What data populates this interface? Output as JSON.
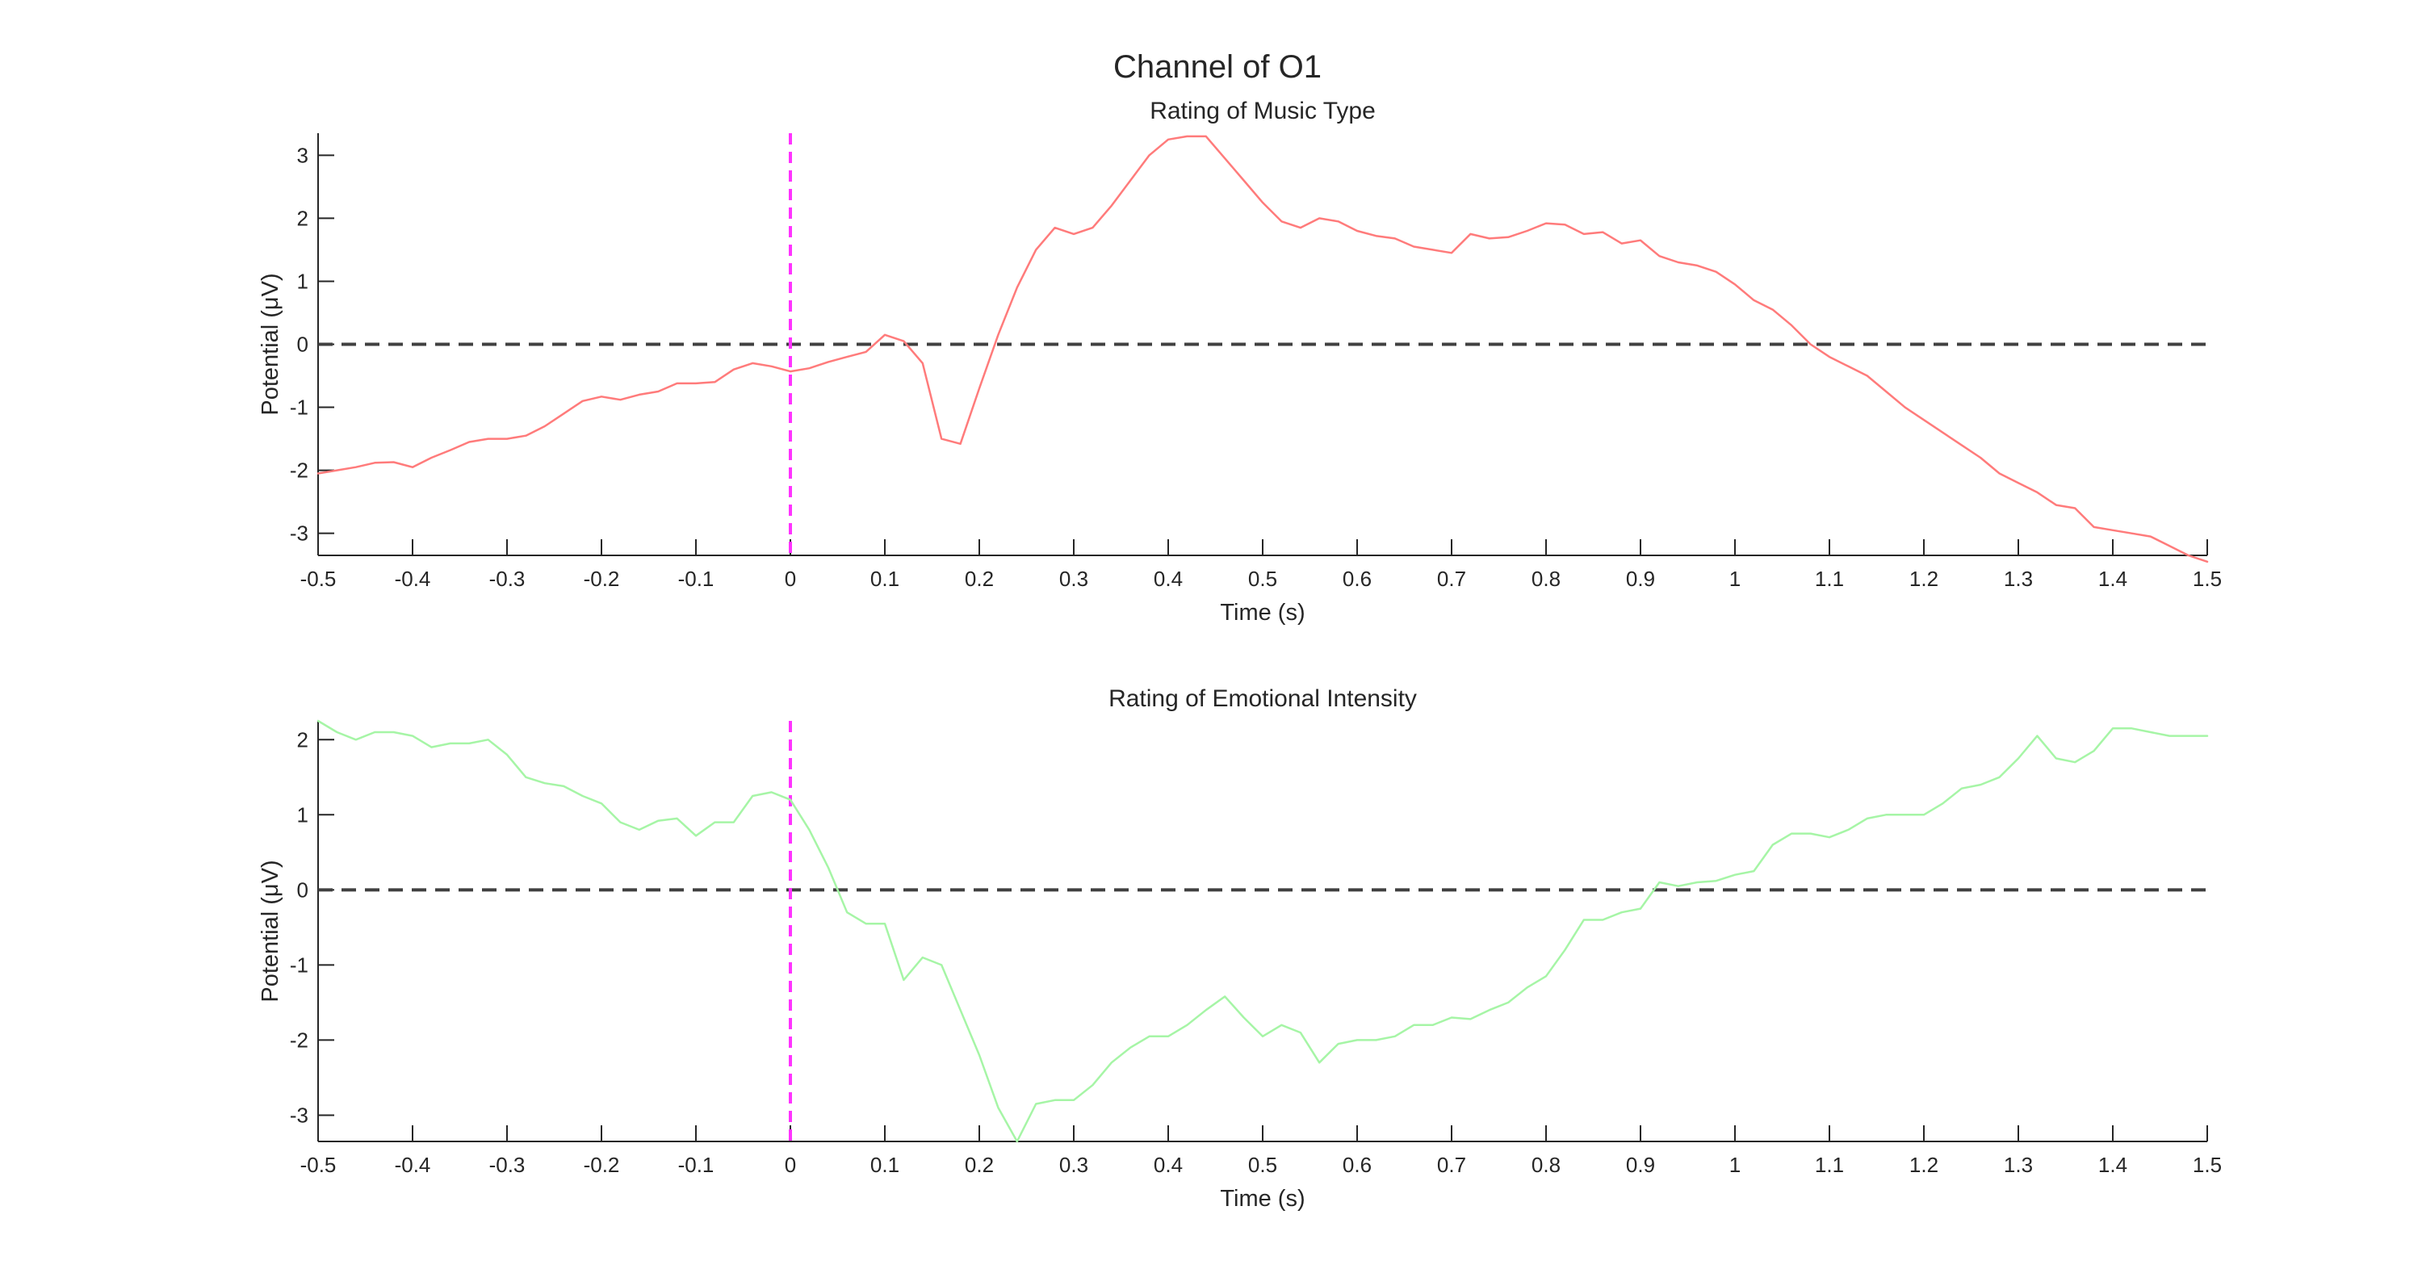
{
  "figure": {
    "title": "Channel of O1"
  },
  "chart_data": [
    {
      "type": "line",
      "title": "Rating of Music Type",
      "xlabel": "Time (s)",
      "ylabel": "Potential (μV)",
      "xlim": [
        -0.5,
        1.5
      ],
      "ylim": [
        -3.35,
        3.35
      ],
      "xticks": [
        -0.5,
        -0.4,
        -0.3,
        -0.2,
        -0.1,
        0,
        0.1,
        0.2,
        0.3,
        0.4,
        0.5,
        0.6,
        0.7,
        0.8,
        0.9,
        1,
        1.1,
        1.2,
        1.3,
        1.4,
        1.5
      ],
      "xtick_labels": [
        "-0.5",
        "-0.4",
        "-0.3",
        "-0.2",
        "-0.1",
        "0",
        "0.1",
        "0.2",
        "0.3",
        "0.4",
        "0.5",
        "0.6",
        "0.7",
        "0.8",
        "0.9",
        "1",
        "1.1",
        "1.2",
        "1.3",
        "1.4",
        "1.5"
      ],
      "yticks": [
        -3,
        -2,
        -1,
        0,
        1,
        2,
        3
      ],
      "ytick_labels": [
        "-3",
        "-2",
        "-1",
        "0",
        "1",
        "2",
        "3"
      ],
      "grid": false,
      "reference_lines": [
        {
          "orientation": "horizontal",
          "value": 0,
          "style": "dashed",
          "color": "#404040"
        },
        {
          "orientation": "vertical",
          "value": 0,
          "style": "dashed",
          "color": "#ff33ff"
        }
      ],
      "series": [
        {
          "color": "#ff7b7b",
          "x": [
            -0.5,
            -0.48,
            -0.46,
            -0.44,
            -0.42,
            -0.4,
            -0.38,
            -0.36,
            -0.34,
            -0.32,
            -0.3,
            -0.28,
            -0.26,
            -0.24,
            -0.22,
            -0.2,
            -0.18,
            -0.16,
            -0.14,
            -0.12,
            -0.1,
            -0.08,
            -0.06,
            -0.04,
            -0.02,
            0.0,
            0.02,
            0.04,
            0.06,
            0.08,
            0.1,
            0.12,
            0.14,
            0.16,
            0.18,
            0.2,
            0.22,
            0.24,
            0.26,
            0.28,
            0.3,
            0.32,
            0.34,
            0.36,
            0.38,
            0.4,
            0.42,
            0.44,
            0.46,
            0.48,
            0.5,
            0.52,
            0.54,
            0.56,
            0.58,
            0.6,
            0.62,
            0.64,
            0.66,
            0.68,
            0.7,
            0.72,
            0.74,
            0.76,
            0.78,
            0.8,
            0.82,
            0.84,
            0.86,
            0.88,
            0.9,
            0.92,
            0.94,
            0.96,
            0.98,
            1.0,
            1.02,
            1.04,
            1.06,
            1.08,
            1.1,
            1.12,
            1.14,
            1.16,
            1.18,
            1.2,
            1.22,
            1.24,
            1.26,
            1.28,
            1.3,
            1.32,
            1.34,
            1.36,
            1.38,
            1.4,
            1.42,
            1.44,
            1.46,
            1.48,
            1.5
          ],
          "y": [
            -2.05,
            -2.0,
            -1.95,
            -1.88,
            -1.87,
            -1.95,
            -1.8,
            -1.68,
            -1.55,
            -1.5,
            -1.5,
            -1.45,
            -1.3,
            -1.1,
            -0.9,
            -0.83,
            -0.88,
            -0.8,
            -0.75,
            -0.62,
            -0.62,
            -0.6,
            -0.4,
            -0.3,
            -0.35,
            -0.43,
            -0.38,
            -0.28,
            -0.2,
            -0.12,
            0.15,
            0.05,
            -0.3,
            -1.5,
            -1.58,
            -0.7,
            0.15,
            0.9,
            1.5,
            1.85,
            1.75,
            1.85,
            2.2,
            2.6,
            3.0,
            3.25,
            3.3,
            3.3,
            2.95,
            2.6,
            2.25,
            1.95,
            1.85,
            2.0,
            1.95,
            1.8,
            1.72,
            1.68,
            1.55,
            1.5,
            1.45,
            1.75,
            1.68,
            1.7,
            1.8,
            1.92,
            1.9,
            1.75,
            1.78,
            1.6,
            1.65,
            1.4,
            1.3,
            1.25,
            1.15,
            0.95,
            0.7,
            0.55,
            0.3,
            0.0,
            -0.2,
            -0.35,
            -0.5,
            -0.75,
            -1.0,
            -1.2,
            -1.4,
            -1.6,
            -1.8,
            -2.05,
            -2.2,
            -2.35,
            -2.55,
            -2.6,
            -2.9,
            -2.95,
            -3.0,
            -3.05,
            -3.2,
            -3.35,
            -3.45
          ]
        }
      ]
    },
    {
      "type": "line",
      "title": "Rating of Emotional Intensity",
      "xlabel": "Time (s)",
      "ylabel": "Potential (μV)",
      "xlim": [
        -0.5,
        1.5
      ],
      "ylim": [
        -3.35,
        2.25
      ],
      "xticks": [
        -0.5,
        -0.4,
        -0.3,
        -0.2,
        -0.1,
        0,
        0.1,
        0.2,
        0.3,
        0.4,
        0.5,
        0.6,
        0.7,
        0.8,
        0.9,
        1,
        1.1,
        1.2,
        1.3,
        1.4,
        1.5
      ],
      "xtick_labels": [
        "-0.5",
        "-0.4",
        "-0.3",
        "-0.2",
        "-0.1",
        "0",
        "0.1",
        "0.2",
        "0.3",
        "0.4",
        "0.5",
        "0.6",
        "0.7",
        "0.8",
        "0.9",
        "1",
        "1.1",
        "1.2",
        "1.3",
        "1.4",
        "1.5"
      ],
      "yticks": [
        -3,
        -2,
        -1,
        0,
        1,
        2
      ],
      "ytick_labels": [
        "-3",
        "-2",
        "-1",
        "0",
        "1",
        "2"
      ],
      "grid": false,
      "reference_lines": [
        {
          "orientation": "horizontal",
          "value": 0,
          "style": "dashed",
          "color": "#404040"
        },
        {
          "orientation": "vertical",
          "value": 0,
          "style": "dashed",
          "color": "#ff33ff"
        }
      ],
      "series": [
        {
          "color": "#a6f5a6",
          "x": [
            -0.5,
            -0.48,
            -0.46,
            -0.44,
            -0.42,
            -0.4,
            -0.38,
            -0.36,
            -0.34,
            -0.32,
            -0.3,
            -0.28,
            -0.26,
            -0.24,
            -0.22,
            -0.2,
            -0.18,
            -0.16,
            -0.14,
            -0.12,
            -0.1,
            -0.08,
            -0.06,
            -0.04,
            -0.02,
            0.0,
            0.02,
            0.04,
            0.06,
            0.08,
            0.1,
            0.12,
            0.14,
            0.16,
            0.18,
            0.2,
            0.22,
            0.24,
            0.26,
            0.28,
            0.3,
            0.32,
            0.34,
            0.36,
            0.38,
            0.4,
            0.42,
            0.44,
            0.46,
            0.48,
            0.5,
            0.52,
            0.54,
            0.56,
            0.58,
            0.6,
            0.62,
            0.64,
            0.66,
            0.68,
            0.7,
            0.72,
            0.74,
            0.76,
            0.78,
            0.8,
            0.82,
            0.84,
            0.86,
            0.88,
            0.9,
            0.92,
            0.94,
            0.96,
            0.98,
            1.0,
            1.02,
            1.04,
            1.06,
            1.08,
            1.1,
            1.12,
            1.14,
            1.16,
            1.18,
            1.2,
            1.22,
            1.24,
            1.26,
            1.28,
            1.3,
            1.32,
            1.34,
            1.36,
            1.38,
            1.4,
            1.42,
            1.44,
            1.46,
            1.48,
            1.5
          ],
          "y": [
            2.25,
            2.1,
            2.0,
            2.1,
            2.1,
            2.05,
            1.9,
            1.95,
            1.95,
            2.0,
            1.8,
            1.5,
            1.42,
            1.38,
            1.25,
            1.15,
            0.9,
            0.8,
            0.92,
            0.95,
            0.72,
            0.9,
            0.9,
            1.25,
            1.3,
            1.2,
            0.8,
            0.3,
            -0.3,
            -0.45,
            -0.45,
            -1.2,
            -0.9,
            -1.0,
            -1.6,
            -2.2,
            -2.9,
            -3.35,
            -2.85,
            -2.8,
            -2.8,
            -2.6,
            -2.3,
            -2.1,
            -1.95,
            -1.95,
            -1.8,
            -1.6,
            -1.42,
            -1.7,
            -1.95,
            -1.8,
            -1.9,
            -2.3,
            -2.05,
            -2.0,
            -2.0,
            -1.95,
            -1.8,
            -1.8,
            -1.7,
            -1.72,
            -1.6,
            -1.5,
            -1.3,
            -1.15,
            -0.8,
            -0.4,
            -0.4,
            -0.3,
            -0.25,
            0.1,
            0.05,
            0.1,
            0.12,
            0.2,
            0.25,
            0.6,
            0.75,
            0.75,
            0.7,
            0.8,
            0.95,
            1.0,
            1.0,
            1.0,
            1.15,
            1.35,
            1.4,
            1.5,
            1.75,
            2.05,
            1.75,
            1.7,
            1.85,
            2.15,
            2.15,
            2.1,
            2.05,
            2.05,
            2.05
          ]
        }
      ]
    }
  ]
}
